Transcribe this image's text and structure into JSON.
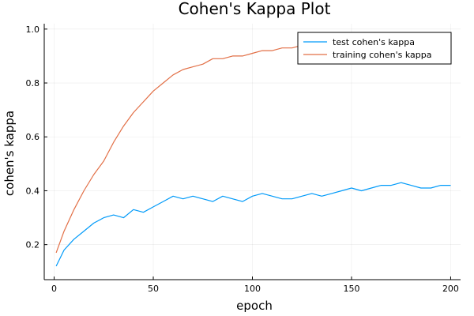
{
  "chart_data": {
    "type": "line",
    "title": "Cohen's Kappa Plot",
    "xlabel": "epoch",
    "ylabel": "cohen's kappa",
    "xlim": [
      -5,
      205
    ],
    "ylim": [
      0.07,
      1.02
    ],
    "x_ticks": [
      0,
      50,
      100,
      150,
      200
    ],
    "y_ticks": [
      0.2,
      0.4,
      0.6,
      0.8,
      1.0
    ],
    "x_tick_labels": [
      "0",
      "50",
      "100",
      "150",
      "200"
    ],
    "y_tick_labels": [
      "0.2",
      "0.4",
      "0.6",
      "0.8",
      "1.0"
    ],
    "grid": true,
    "legend_position": "top-right",
    "x": [
      1,
      5,
      10,
      15,
      20,
      25,
      30,
      35,
      40,
      45,
      50,
      55,
      60,
      65,
      70,
      75,
      80,
      85,
      90,
      95,
      100,
      105,
      110,
      115,
      120,
      125,
      130,
      135,
      140,
      145,
      150,
      155,
      160,
      165,
      170,
      175,
      180,
      185,
      190,
      195,
      200
    ],
    "series": [
      {
        "name": "test cohen's kappa",
        "color": "#009AF9",
        "values": [
          0.12,
          0.18,
          0.22,
          0.25,
          0.28,
          0.3,
          0.31,
          0.3,
          0.33,
          0.32,
          0.34,
          0.36,
          0.38,
          0.37,
          0.38,
          0.37,
          0.36,
          0.38,
          0.37,
          0.36,
          0.38,
          0.39,
          0.38,
          0.37,
          0.37,
          0.38,
          0.39,
          0.38,
          0.39,
          0.4,
          0.41,
          0.4,
          0.41,
          0.42,
          0.42,
          0.43,
          0.42,
          0.41,
          0.41,
          0.42,
          0.42
        ]
      },
      {
        "name": "training cohen's kappa",
        "color": "#E26F46",
        "values": [
          0.17,
          0.25,
          0.33,
          0.4,
          0.46,
          0.51,
          0.58,
          0.64,
          0.69,
          0.73,
          0.77,
          0.8,
          0.83,
          0.85,
          0.86,
          0.87,
          0.89,
          0.89,
          0.9,
          0.9,
          0.91,
          0.92,
          0.92,
          0.93,
          0.93,
          0.94,
          0.94,
          0.94,
          0.94,
          0.95,
          0.95,
          0.95,
          0.95,
          0.96,
          0.96,
          0.96,
          0.96,
          0.96,
          0.97,
          0.97,
          0.98
        ]
      }
    ]
  }
}
